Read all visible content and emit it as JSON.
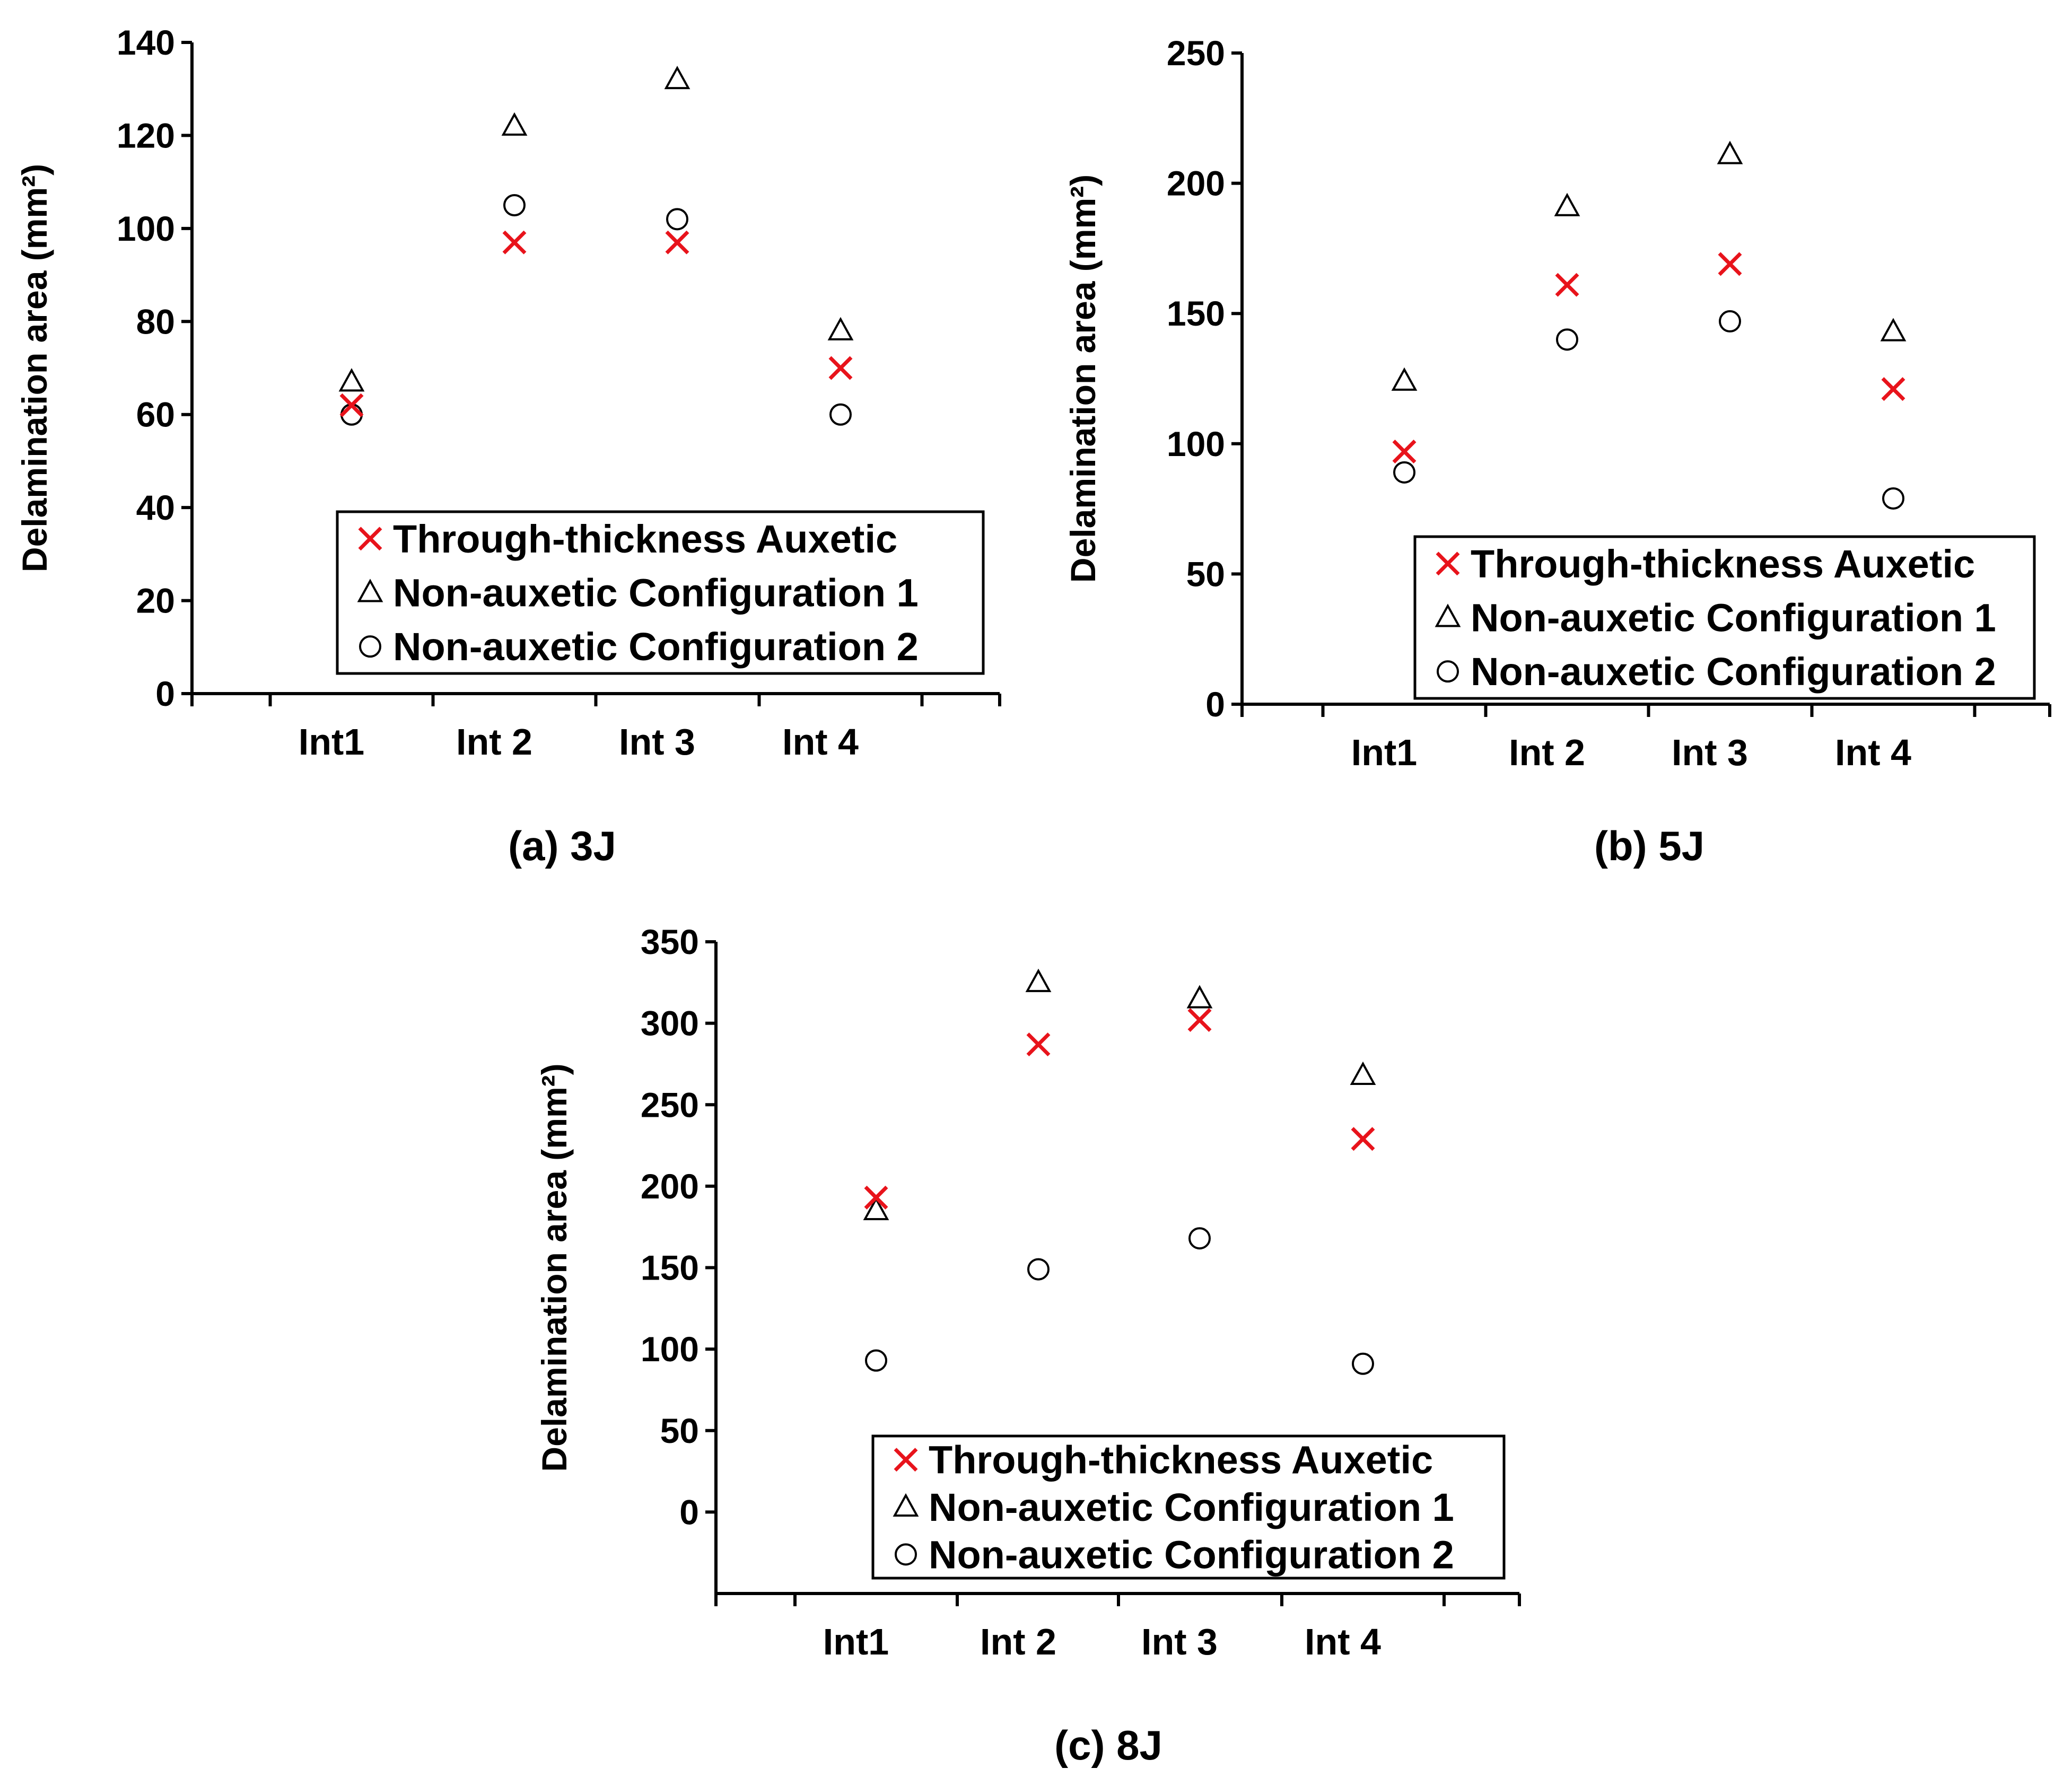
{
  "chart_data": [
    {
      "type": "scatter",
      "caption": "(a) 3J",
      "ylabel": "Delamination area (mm²)",
      "categories": [
        "Int1",
        "Int 2",
        "Int 3",
        "Int 4"
      ],
      "ylim": [
        0,
        140
      ],
      "yticks": [
        0,
        20,
        40,
        60,
        80,
        100,
        120,
        140
      ],
      "ytick_labels": [
        "0",
        "20",
        "40",
        "60",
        "80",
        "100",
        "120",
        "140"
      ],
      "legend_position": "lower-right",
      "series": [
        {
          "name": "Through-thickness Auxetic",
          "marker": "x",
          "values": [
            62,
            97,
            97,
            70
          ]
        },
        {
          "name": "Non-auxetic Configuration 1",
          "marker": "triangle",
          "values": [
            67,
            122,
            132,
            78
          ]
        },
        {
          "name": "Non-auxetic Configuration 2",
          "marker": "circle",
          "values": [
            60,
            105,
            102,
            60
          ]
        }
      ]
    },
    {
      "type": "scatter",
      "caption": "(b) 5J",
      "ylabel": "Delamination area (mm²)",
      "categories": [
        "Int1",
        "Int 2",
        "Int 3",
        "Int 4"
      ],
      "ylim": [
        0,
        250
      ],
      "yticks": [
        0,
        50,
        100,
        150,
        200,
        250
      ],
      "ytick_labels": [
        "0",
        "50",
        "100",
        "150",
        "200",
        "250"
      ],
      "legend_position": "lower-right",
      "series": [
        {
          "name": "Through-thickness Auxetic",
          "marker": "x",
          "values": [
            97,
            161,
            169,
            121
          ]
        },
        {
          "name": "Non-auxetic Configuration 1",
          "marker": "triangle",
          "values": [
            124,
            191,
            211,
            143
          ]
        },
        {
          "name": "Non-auxetic Configuration 2",
          "marker": "circle",
          "values": [
            89,
            140,
            147,
            79
          ]
        }
      ]
    },
    {
      "type": "scatter",
      "caption": "(c) 8J",
      "ylabel": "Delamination area (mm²)",
      "categories": [
        "Int1",
        "Int 2",
        "Int 3",
        "Int 4"
      ],
      "ylim": [
        -50,
        350
      ],
      "yticks": [
        0,
        50,
        100,
        150,
        200,
        250,
        300,
        350
      ],
      "ytick_labels": [
        "0",
        "50",
        "100",
        "150",
        "200",
        "250",
        "300",
        "350"
      ],
      "legend_position": "lower-right",
      "series": [
        {
          "name": "Through-thickness Auxetic",
          "marker": "x",
          "values": [
            193,
            287,
            302,
            229
          ]
        },
        {
          "name": "Non-auxetic Configuration 1",
          "marker": "triangle",
          "values": [
            185,
            325,
            315,
            268
          ]
        },
        {
          "name": "Non-auxetic Configuration 2",
          "marker": "circle",
          "values": [
            93,
            149,
            168,
            91
          ]
        }
      ]
    }
  ],
  "colors": {
    "auxetic": "#e8131b",
    "axis": "#000000"
  }
}
